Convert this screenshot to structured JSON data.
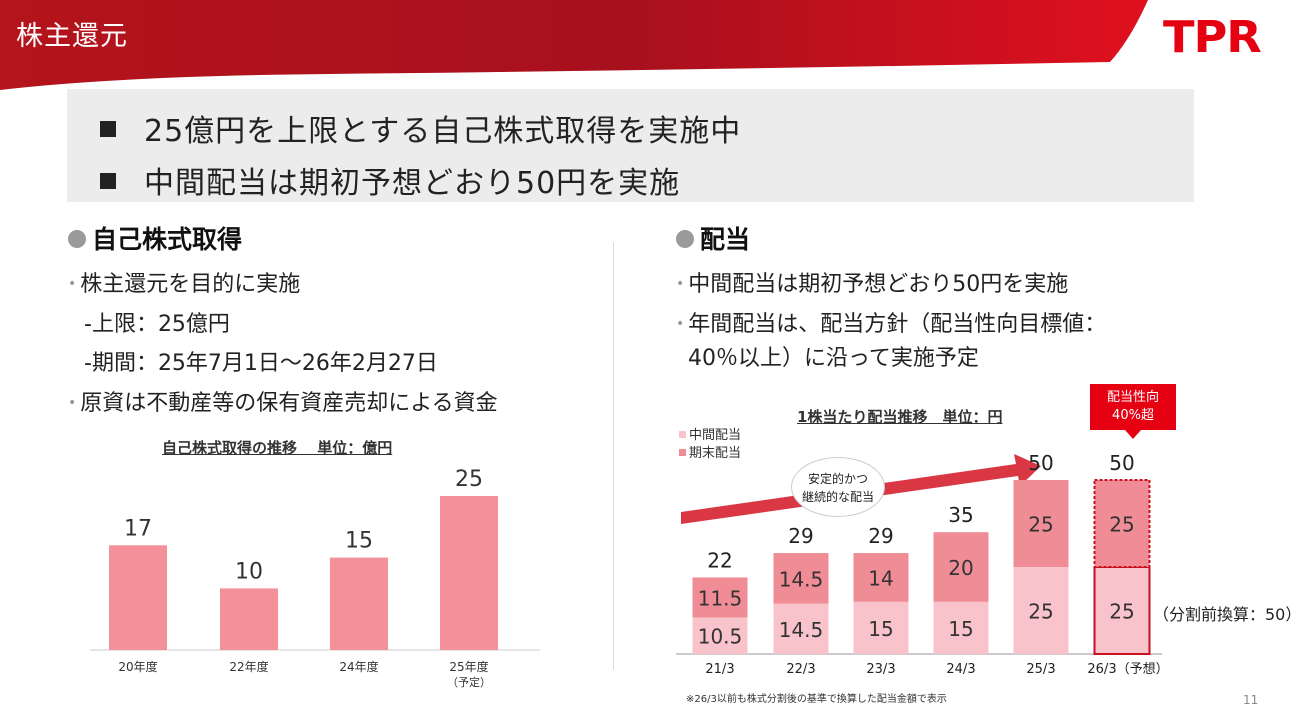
{
  "page": {
    "title": "株主還元",
    "logo": "TPR",
    "page_number": "11"
  },
  "colors": {
    "brand_red": "#e50012",
    "bar_buyback": "#f4909a",
    "interim": "#f8c3cb",
    "year_end": "#f08c96"
  },
  "summary": {
    "line1": "25億円を上限とする自己株式取得を実施中",
    "line2": "中間配当は期初予想どおり50円を実施"
  },
  "buyback": {
    "title": "自己株式取得",
    "bullets": {
      "b1": "株主還元を目的に実施",
      "b2": "-上限：25億円",
      "b3": "-期間：25年7月1日～26年2月27日",
      "b4": "原資は不動産等の保有資産売却による資金"
    },
    "chart_title": "自己株式取得の推移　 単位：億円"
  },
  "dividend": {
    "title": "配当",
    "bullets": {
      "b1": "中間配当は期初予想どおり50円を実施",
      "b2": "年間配当は、配当方針（配当性向目標値：",
      "b3": "40％以上）に沿って実施予定"
    },
    "chart_title": "1株当たり配当推移　単位：円",
    "badge_line1": "配当性向",
    "badge_line2": "40%超",
    "bubble_line1": "安定的かつ",
    "bubble_line2": "継続的な配当",
    "split_note": "（分割前換算：50）",
    "footnote": "※26/3以前も株式分割後の基準で換算した配当金額で表示"
  },
  "chart_data": [
    {
      "type": "bar",
      "categories": [
        "20年度",
        "22年度",
        "24年度",
        "25年度"
      ],
      "category_sublabels": [
        "",
        "",
        "",
        "（予定）"
      ],
      "values": [
        17,
        10,
        15,
        25
      ],
      "title": "自己株式取得の推移",
      "unit": "単位：億円",
      "ylim": [
        0,
        25
      ]
    },
    {
      "type": "bar",
      "stacked": true,
      "categories": [
        "21/3",
        "22/3",
        "23/3",
        "24/3",
        "25/3",
        "26/3（予想）"
      ],
      "series": [
        {
          "name": "中間配当",
          "values": [
            10.5,
            14.5,
            15,
            15,
            25,
            25
          ]
        },
        {
          "name": "期末配当",
          "values": [
            11.5,
            14.5,
            14,
            20,
            25,
            25
          ]
        }
      ],
      "totals": [
        22,
        29,
        29,
        35,
        50,
        50
      ],
      "title": "1株当たり配当推移",
      "unit": "単位：円",
      "legend": "top-left",
      "ylim": [
        0,
        50
      ]
    }
  ]
}
